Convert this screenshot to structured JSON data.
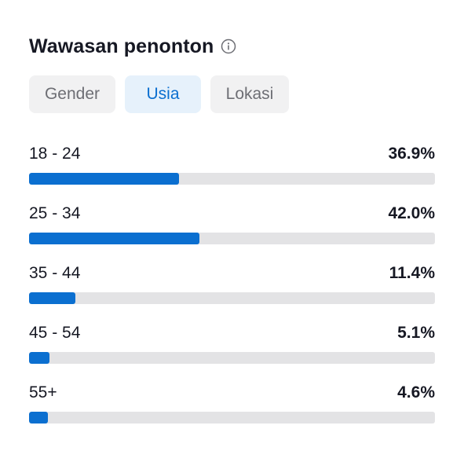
{
  "header": {
    "title": "Wawasan penonton",
    "info_icon": "info-circle-icon"
  },
  "tabs": [
    {
      "label": "Gender",
      "selected": false
    },
    {
      "label": "Usia",
      "selected": true
    },
    {
      "label": "Lokasi",
      "selected": false
    }
  ],
  "age_rows": [
    {
      "label": "18 - 24",
      "value": "36.9%",
      "percent": 36.9
    },
    {
      "label": "25 - 34",
      "value": "42.0%",
      "percent": 42.0
    },
    {
      "label": "35 - 44",
      "value": "11.4%",
      "percent": 11.4
    },
    {
      "label": "45 - 54",
      "value": "5.1%",
      "percent": 5.1
    },
    {
      "label": "55+",
      "value": "4.6%",
      "percent": 4.6
    }
  ],
  "colors": {
    "accent": "#0b6fd0",
    "track": "#e3e3e5",
    "tab_bg": "#f1f1f2",
    "tab_selected_bg": "#e6f1fb"
  }
}
